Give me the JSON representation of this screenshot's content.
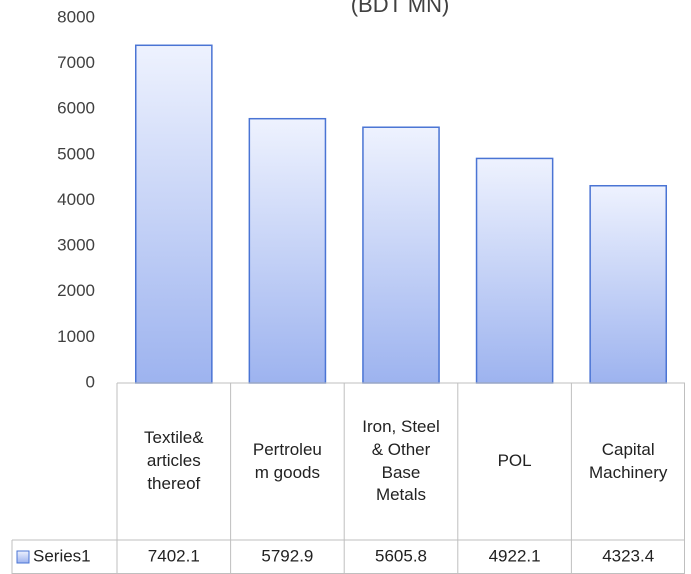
{
  "chart_data": {
    "type": "bar",
    "title": "(BDT MN)",
    "categories": [
      "Textile& articles thereof",
      "Pertroleum goods",
      "Iron, Steel & Other Base Metals",
      "POL",
      "Capital Machinery"
    ],
    "series": [
      {
        "name": "Series1",
        "color": "#9db3ef",
        "values": [
          7402.1,
          5792.9,
          5605.8,
          4922.1,
          4323.4
        ]
      }
    ],
    "ylim": [
      0,
      8000
    ],
    "yticks": [
      0,
      1000,
      2000,
      3000,
      4000,
      5000,
      6000,
      7000,
      8000
    ],
    "grid": false,
    "data_table": true
  }
}
